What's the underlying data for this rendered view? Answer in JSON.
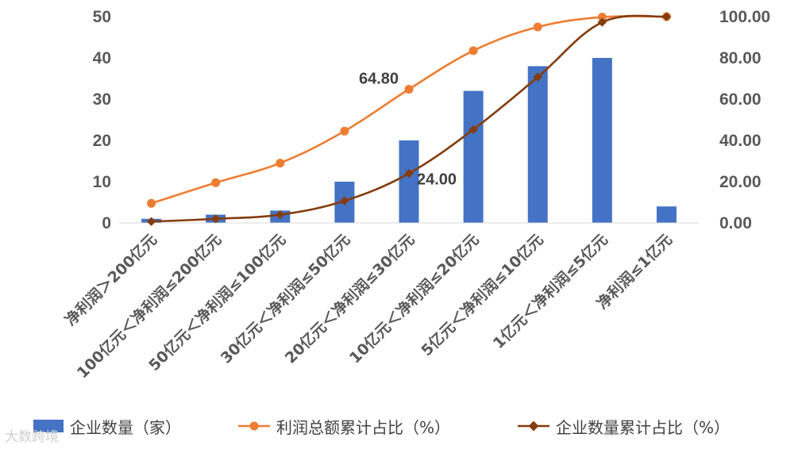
{
  "chart_data": {
    "type": "bar",
    "categories": [
      "净利润＞200亿元",
      "100亿元＜净利润≤200亿元",
      "50亿元＜净利润≤100亿元",
      "30亿元＜净利润≤50亿元",
      "20亿元＜净利润≤30亿元",
      "10亿元＜净利润≤20亿元",
      "5亿元＜净利润≤10亿元",
      "1亿元＜净利润≤5亿元",
      "净利润≤1亿元"
    ],
    "series": [
      {
        "name": "企业数量（家）",
        "type": "bar",
        "axis": "left",
        "color": "#4472c4",
        "values": [
          1,
          2,
          3,
          10,
          20,
          32,
          38,
          40,
          4
        ]
      },
      {
        "name": "利润总额累计占比（%）",
        "type": "line",
        "axis": "right",
        "color": "#ed7d31",
        "marker": "circle",
        "values": [
          9.5,
          19.5,
          29.0,
          44.5,
          64.8,
          83.5,
          95.0,
          99.8,
          100.0
        ]
      },
      {
        "name": "企业数量累计占比（%）",
        "type": "line",
        "axis": "right",
        "color": "#843c0c",
        "marker": "diamond",
        "values": [
          0.67,
          2.0,
          4.0,
          10.7,
          24.0,
          45.3,
          70.7,
          97.3,
          100.0
        ]
      }
    ],
    "annotations": [
      {
        "series": 1,
        "index": 4,
        "text": "64.80"
      },
      {
        "series": 2,
        "index": 4,
        "text": "24.00"
      }
    ],
    "ylim_left": [
      0,
      50
    ],
    "yticks_left": [
      "0",
      "10",
      "20",
      "30",
      "40",
      "50"
    ],
    "ylim_right": [
      0,
      100
    ],
    "yticks_right": [
      "0.00",
      "20.00",
      "40.00",
      "60.00",
      "80.00",
      "100.00"
    ],
    "grid": false,
    "legend_position": "bottom"
  },
  "watermark": "大数跨境"
}
